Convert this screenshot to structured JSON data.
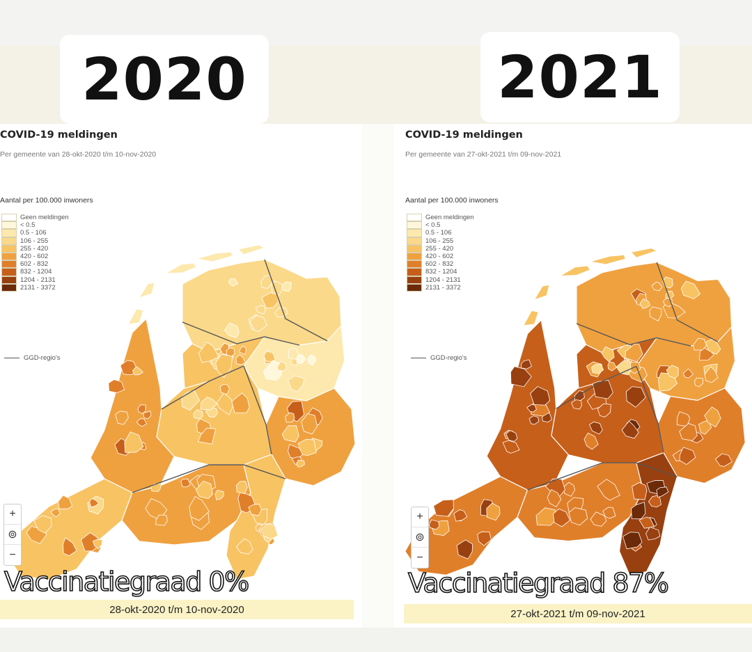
{
  "panels": [
    {
      "year": "2020",
      "title": "COVID-19 meldingen",
      "subtitle": "Per gemeente van 28-okt-2020 t/m 10-nov-2020",
      "legend_title": "Aantal per 100.000 inwoners",
      "vaccination": "Vaccinatiegraad 0%",
      "date_range": "28-okt-2020 t/m 10-nov-2020"
    },
    {
      "year": "2021",
      "title": "COVID-19 meldingen",
      "subtitle": "Per gemeente van 27-okt-2021 t/m 09-nov-2021",
      "legend_title": "Aantal per 100.000 inwoners",
      "vaccination": "Vaccinatiegraad 87%",
      "date_range": "27-okt-2021 t/m 09-nov-2021"
    }
  ],
  "legend": [
    {
      "label": "Geen meldingen",
      "color": "#ffffff"
    },
    {
      "label": "< 0.5",
      "color": "#fff7dc"
    },
    {
      "label": "0.5 - 106",
      "color": "#fde9ad"
    },
    {
      "label": "106 - 255",
      "color": "#fbd98a"
    },
    {
      "label": "255 - 420",
      "color": "#f8c363"
    },
    {
      "label": "420 - 602",
      "color": "#efa13f"
    },
    {
      "label": "602 - 832",
      "color": "#e07f2a"
    },
    {
      "label": "832 - 1204",
      "color": "#c65f1a"
    },
    {
      "label": "1204 - 2131",
      "color": "#984010"
    },
    {
      "label": "2131 - 3372",
      "color": "#6b2a08"
    }
  ],
  "ggd_label": "GGD-regio's",
  "zoom": {
    "plus": "+",
    "reset": "⊚",
    "minus": "−"
  },
  "map_fill_levels": {
    "2020": {
      "north": 3,
      "northeast": 2,
      "east": 5,
      "center": 4,
      "west": 5,
      "southwest": 4,
      "south": 5,
      "southeast": 4
    },
    "2021": {
      "north": 5,
      "northeast": 5,
      "east": 6,
      "center": 7,
      "west": 7,
      "southwest": 6,
      "south": 6,
      "southeast": 8
    }
  }
}
